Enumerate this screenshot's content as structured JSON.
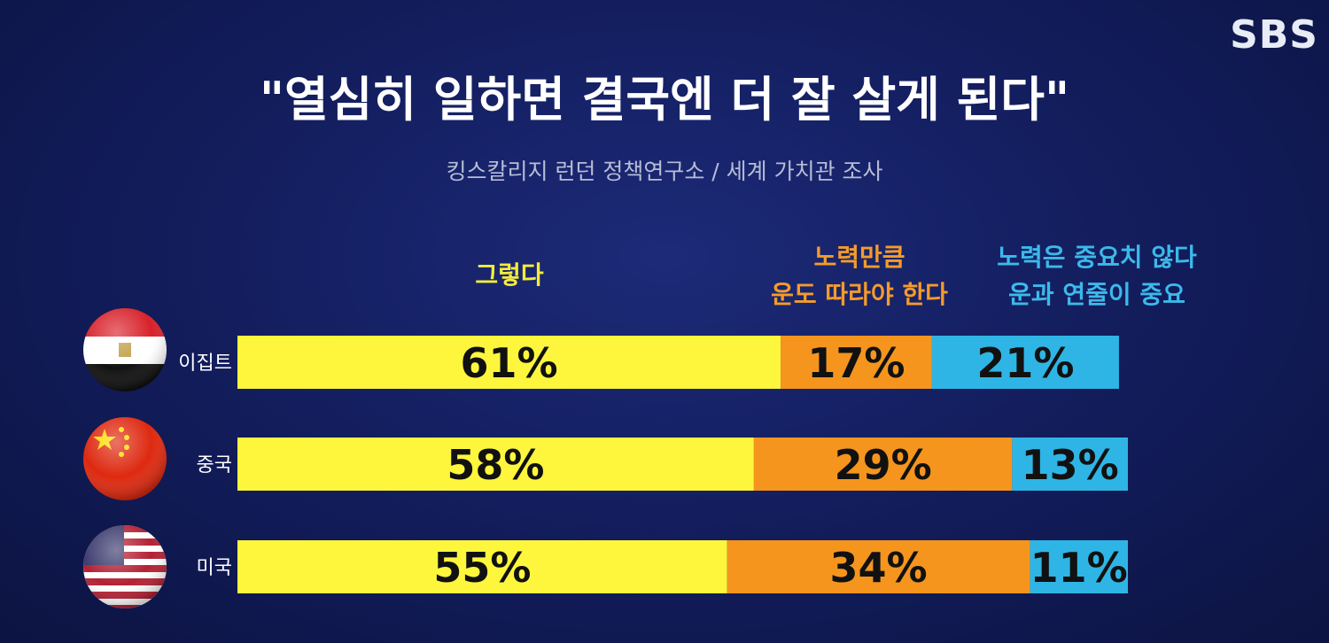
{
  "logo": "SBS",
  "title": "\"열심히 일하면 결국엔 더 잘 살게 된다\"",
  "subtitle": "킹스칼리지 런던 정책연구소 / 세계 가치관 조사",
  "legend": {
    "yes": "그렇다",
    "luck_line1": "노력만큼",
    "luck_line2": "운도 따라야 한다",
    "notimportant_line1": "노력은 중요치 않다",
    "notimportant_line2": "운과 연줄이 중요"
  },
  "colors": {
    "yes": "#fdf63c",
    "luck": "#f5951e",
    "notimportant": "#2fb5e5",
    "legend_yes": "#f4ec3a",
    "legend_luck": "#f59b2a",
    "legend_notimportant": "#3cb9ea"
  },
  "chart_data": {
    "type": "bar",
    "stacked": true,
    "orientation": "horizontal",
    "categories": [
      "이집트",
      "중국",
      "미국"
    ],
    "flags": [
      "egypt-flag",
      "china-flag",
      "usa-flag"
    ],
    "series": [
      {
        "name": "그렇다",
        "values": [
          61,
          58,
          55
        ],
        "labels": [
          "61%",
          "58%",
          "55%"
        ]
      },
      {
        "name": "노력만큼 운도 따라야 한다",
        "values": [
          17,
          29,
          34
        ],
        "labels": [
          "17%",
          "29%",
          "34%"
        ]
      },
      {
        "name": "노력은 중요치 않다 운과 연줄이 중요",
        "values": [
          21,
          13,
          11
        ],
        "labels": [
          "21%",
          "13%",
          "11%"
        ]
      }
    ],
    "xlim": [
      0,
      100
    ]
  }
}
